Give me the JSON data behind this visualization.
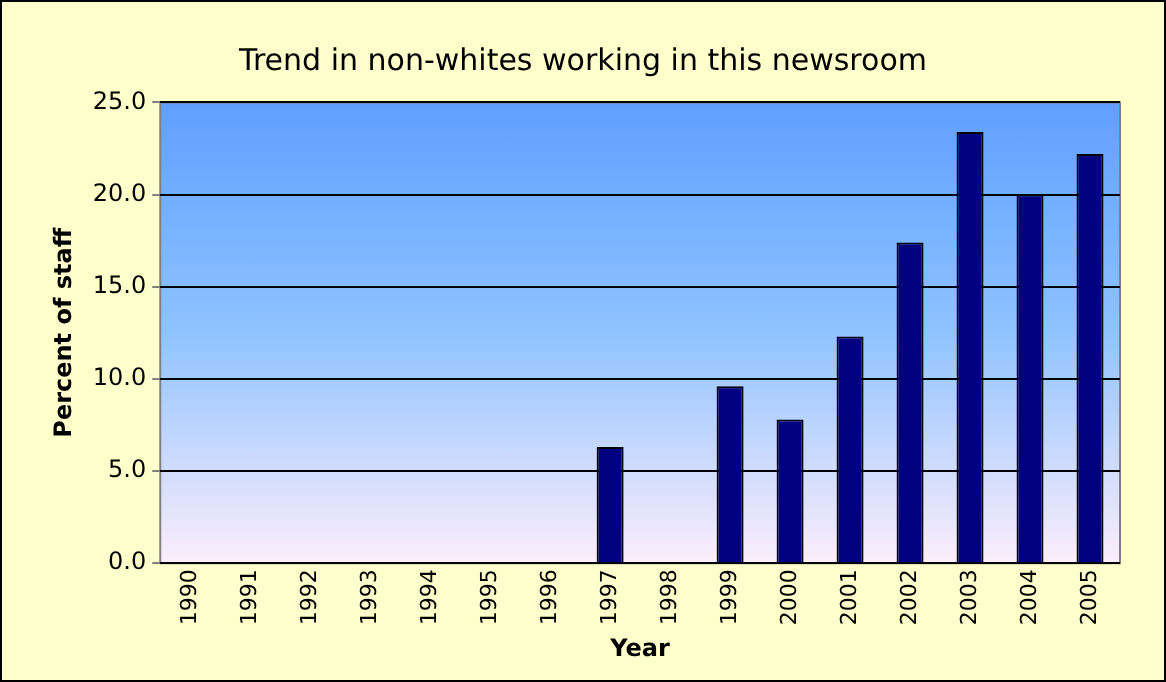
{
  "chart_data": {
    "type": "bar",
    "title": "Trend in non-whites working in this newsroom",
    "xlabel": "Year",
    "ylabel": "Percent of staff",
    "categories": [
      "1990",
      "1991",
      "1992",
      "1993",
      "1994",
      "1995",
      "1996",
      "1997",
      "1998",
      "1999",
      "2000",
      "2001",
      "2002",
      "2003",
      "2004",
      "2005"
    ],
    "values": [
      null,
      null,
      null,
      null,
      null,
      null,
      null,
      6.3,
      null,
      9.6,
      7.8,
      12.3,
      17.4,
      23.4,
      20.0,
      22.2
    ],
    "color": "#000080",
    "ylim": [
      0,
      25
    ],
    "yticks": [
      {
        "value": 0,
        "label": "0.0"
      },
      {
        "value": 5,
        "label": "5.0"
      },
      {
        "value": 10,
        "label": "10.0"
      },
      {
        "value": 15,
        "label": "15.0"
      },
      {
        "value": 20,
        "label": "20.0"
      },
      {
        "value": 25,
        "label": "25.0"
      }
    ],
    "grid": "y",
    "legend": false
  }
}
